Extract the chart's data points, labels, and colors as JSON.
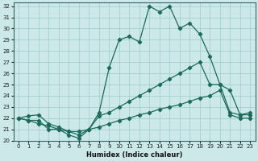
{
  "xlabel": "Humidex (Indice chaleur)",
  "background_color": "#cce8e8",
  "grid_color": "#99cccc",
  "line_color": "#1a6b5a",
  "xlim": [
    -0.5,
    23.5
  ],
  "ylim": [
    20,
    32.3
  ],
  "xticks": [
    0,
    1,
    2,
    3,
    4,
    5,
    6,
    7,
    8,
    9,
    10,
    11,
    12,
    13,
    14,
    15,
    16,
    17,
    18,
    19,
    20,
    21,
    22,
    23
  ],
  "yticks": [
    20,
    21,
    22,
    23,
    24,
    25,
    26,
    27,
    28,
    29,
    30,
    31,
    32
  ],
  "line1_x": [
    0,
    1,
    2,
    3,
    4,
    5,
    6,
    7,
    8,
    9,
    10,
    11,
    12,
    13,
    14,
    15,
    16,
    17,
    18,
    19,
    20,
    21,
    22,
    23
  ],
  "line1_y": [
    22,
    22.2,
    22.3,
    21.5,
    21.2,
    20.8,
    20.5,
    21.0,
    22.5,
    26.5,
    29.0,
    29.3,
    28.8,
    32.0,
    31.5,
    32.0,
    30.0,
    30.5,
    29.5,
    27.5,
    25.0,
    24.5,
    22.3,
    22.5
  ],
  "line2_x": [
    0,
    1,
    2,
    3,
    4,
    5,
    6,
    7,
    8,
    9,
    10,
    11,
    12,
    13,
    14,
    15,
    16,
    17,
    18,
    19,
    20,
    21,
    22,
    23
  ],
  "line2_y": [
    22,
    21.8,
    21.8,
    21.0,
    21.0,
    20.5,
    20.2,
    21.0,
    22.2,
    22.5,
    23.0,
    23.5,
    24.0,
    24.5,
    25.0,
    25.5,
    26.0,
    26.5,
    27.0,
    25.0,
    25.0,
    22.5,
    22.3,
    22.3
  ],
  "line3_x": [
    0,
    1,
    2,
    3,
    4,
    5,
    6,
    7,
    8,
    9,
    10,
    11,
    12,
    13,
    14,
    15,
    16,
    17,
    18,
    19,
    20,
    21,
    22,
    23
  ],
  "line3_y": [
    22,
    21.8,
    21.5,
    21.3,
    21.0,
    20.8,
    20.8,
    21.0,
    21.2,
    21.5,
    21.8,
    22.0,
    22.3,
    22.5,
    22.8,
    23.0,
    23.2,
    23.5,
    23.8,
    24.0,
    24.5,
    22.3,
    22.0,
    22.0
  ]
}
